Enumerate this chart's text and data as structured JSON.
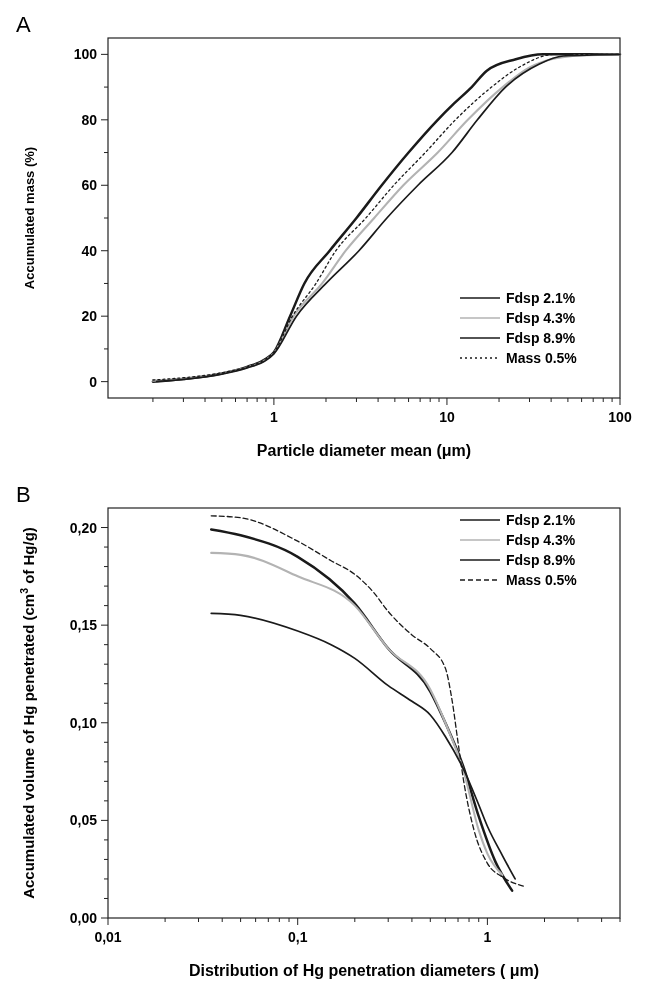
{
  "chart_data": [
    {
      "type": "line",
      "title": "A",
      "xlabel": "Particle diameter mean (μm)",
      "ylabel": "Accumulated mass (%)",
      "log": "x",
      "legend": "bottom right",
      "grid": false,
      "xlim": [
        0.11,
        100
      ],
      "ylim": [
        -5,
        105
      ],
      "xticks": [
        {
          "value": 0.2,
          "label": null
        },
        {
          "value": 0.3,
          "label": null
        },
        {
          "value": 0.4,
          "label": null
        },
        {
          "value": 0.5,
          "label": null
        },
        {
          "value": 0.6,
          "label": null
        },
        {
          "value": 0.7,
          "label": null
        },
        {
          "value": 0.8,
          "label": null
        },
        {
          "value": 0.9,
          "label": null
        },
        1,
        {
          "value": 2,
          "label": null
        },
        {
          "value": 3,
          "label": null
        },
        {
          "value": 4,
          "label": null
        },
        {
          "value": 5,
          "label": null
        },
        {
          "value": 6,
          "label": null
        },
        {
          "value": 7,
          "label": null
        },
        {
          "value": 8,
          "label": null
        },
        {
          "value": 9,
          "label": null
        },
        10,
        {
          "value": 20,
          "label": null
        },
        {
          "value": 30,
          "label": null
        },
        {
          "value": 40,
          "label": null
        },
        {
          "value": 50,
          "label": null
        },
        {
          "value": 60,
          "label": null
        },
        {
          "value": 70,
          "label": null
        },
        {
          "value": 80,
          "label": null
        },
        {
          "value": 90,
          "label": null
        },
        100
      ],
      "yticks": [
        0,
        {
          "value": 10,
          "label": null
        },
        20,
        {
          "value": 30,
          "label": null
        },
        40,
        {
          "value": 50,
          "label": null
        },
        60,
        {
          "value": 70,
          "label": null
        },
        80,
        {
          "value": 90,
          "label": null
        },
        100
      ],
      "series": [
        {
          "name": "Fdsp 2.1%",
          "color": "#1a1a1a",
          "line_style": "solid",
          "x": [
            0.2,
            0.3,
            0.5,
            0.7,
            0.9,
            1.0,
            1.24,
            1.5,
            2.1,
            3,
            4.2,
            6,
            8.85,
            11,
            13.9,
            17,
            25,
            36,
            100
          ],
          "values": [
            0,
            0.8,
            2.5,
            4.5,
            7,
            9,
            20,
            30,
            40,
            50,
            60,
            70,
            80,
            85,
            90,
            95,
            98.5,
            100,
            100
          ]
        },
        {
          "name": "Fdsp 4.3%",
          "color": "#b3b3b3",
          "line_style": "solid",
          "x": [
            0.2,
            0.3,
            0.5,
            0.7,
            0.9,
            1.0,
            1.3,
            1.9,
            2.6,
            3.8,
            5.6,
            8.85,
            13.2,
            21,
            30,
            40,
            60,
            100
          ],
          "values": [
            0.3,
            0.9,
            2.5,
            4.3,
            6.7,
            8.7,
            20,
            30,
            40,
            50,
            60,
            70,
            80,
            90,
            96,
            98.5,
            99.7,
            100
          ]
        },
        {
          "name": "Fdsp 8.9%",
          "color": "#1a1a1a",
          "line_style": "solid",
          "x": [
            0.21,
            0.3,
            0.5,
            0.7,
            0.9,
            1.0,
            1.35,
            2,
            3.1,
            4.5,
            6.8,
            10.7,
            15,
            21.8,
            34,
            47,
            100
          ],
          "values": [
            0.1,
            0.7,
            2.3,
            4.2,
            6.5,
            8.5,
            20,
            30,
            40,
            50,
            60,
            70,
            80,
            90,
            97,
            99.5,
            100
          ]
        },
        {
          "name": "Mass 0.5%",
          "color": "#1a1a1a",
          "line_style": "dotted",
          "x": [
            0.2,
            0.3,
            0.5,
            0.7,
            0.9,
            1.0,
            1.28,
            1.75,
            2.28,
            3.4,
            4.93,
            7.5,
            11.2,
            18.1,
            26,
            42,
            100
          ],
          "values": [
            0.5,
            1.2,
            2.7,
            4.5,
            7,
            9,
            20,
            30,
            40,
            50,
            60,
            70,
            80,
            90,
            96,
            100,
            100
          ]
        }
      ]
    },
    {
      "type": "line",
      "title": "B",
      "xlabel": "Distribution of Hg   penetration diameters ( μm)",
      "ylabel": "Accumulated volume of Hg penetrated (cm$^{3}$ of Hg/g)",
      "log": "x",
      "legend": "top right",
      "grid": false,
      "xlim": [
        0.01,
        5
      ],
      "ylim": [
        0,
        0.21
      ],
      "xticks": [
        {
          "value": 0.01,
          "label": "0,01"
        },
        {
          "value": 0.02,
          "label": null
        },
        {
          "value": 0.03,
          "label": null
        },
        {
          "value": 0.04,
          "label": null
        },
        {
          "value": 0.05,
          "label": null
        },
        {
          "value": 0.06,
          "label": null
        },
        {
          "value": 0.07,
          "label": null
        },
        {
          "value": 0.08,
          "label": null
        },
        {
          "value": 0.09,
          "label": null
        },
        {
          "value": 0.1,
          "label": "0,1"
        },
        {
          "value": 0.2,
          "label": null
        },
        {
          "value": 0.3,
          "label": null
        },
        {
          "value": 0.4,
          "label": null
        },
        {
          "value": 0.5,
          "label": null
        },
        {
          "value": 0.6,
          "label": null
        },
        {
          "value": 0.7,
          "label": null
        },
        {
          "value": 0.8,
          "label": null
        },
        {
          "value": 0.9,
          "label": null
        },
        1,
        {
          "value": 2,
          "label": null
        },
        {
          "value": 3,
          "label": null
        },
        {
          "value": 4,
          "label": null
        },
        {
          "value": 5,
          "label": null
        }
      ],
      "yticks": [
        {
          "value": 0,
          "label": "0,00"
        },
        {
          "value": 0.01,
          "label": null
        },
        {
          "value": 0.02,
          "label": null
        },
        {
          "value": 0.03,
          "label": null
        },
        {
          "value": 0.04,
          "label": null
        },
        {
          "value": 0.05,
          "label": "0,05"
        },
        {
          "value": 0.06,
          "label": null
        },
        {
          "value": 0.07,
          "label": null
        },
        {
          "value": 0.08,
          "label": null
        },
        {
          "value": 0.09,
          "label": null
        },
        {
          "value": 0.1,
          "label": "0,10"
        },
        {
          "value": 0.11,
          "label": null
        },
        {
          "value": 0.12,
          "label": null
        },
        {
          "value": 0.13,
          "label": null
        },
        {
          "value": 0.14,
          "label": null
        },
        {
          "value": 0.15,
          "label": "0,15"
        },
        {
          "value": 0.16,
          "label": null
        },
        {
          "value": 0.17,
          "label": null
        },
        {
          "value": 0.18,
          "label": null
        },
        {
          "value": 0.19,
          "label": null
        },
        {
          "value": 0.2,
          "label": "0,20"
        }
      ],
      "series": [
        {
          "name": "Fdsp 2.1%",
          "color": "#1a1a1a",
          "line_style": "solid",
          "x": [
            0.035,
            0.05,
            0.1,
            0.2,
            0.3,
            0.5,
            0.6,
            0.75,
            0.9,
            1.1,
            1.35
          ],
          "values": [
            0.199,
            0.196,
            0.185,
            0.161,
            0.138,
            0.116,
            0.1,
            0.077,
            0.052,
            0.029,
            0.014
          ]
        },
        {
          "name": "Fdsp 4.3%",
          "color": "#b3b3b3",
          "line_style": "solid",
          "x": [
            0.035,
            0.05,
            0.1,
            0.2,
            0.3,
            0.5,
            0.6,
            0.75,
            0.9,
            1.0,
            1.2
          ],
          "values": [
            0.187,
            0.186,
            0.175,
            0.16,
            0.138,
            0.117,
            0.1,
            0.075,
            0.045,
            0.033,
            0.022
          ]
        },
        {
          "name": "Fdsp 8.9%",
          "color": "#1a1a1a",
          "line_style": "solid",
          "x": [
            0.035,
            0.05,
            0.1,
            0.15,
            0.2,
            0.3,
            0.4,
            0.5,
            0.6,
            0.75,
            0.9,
            1.0,
            1.2,
            1.4
          ],
          "values": [
            0.156,
            0.155,
            0.147,
            0.14,
            0.133,
            0.119,
            0.111,
            0.104,
            0.093,
            0.076,
            0.058,
            0.047,
            0.032,
            0.02
          ]
        },
        {
          "name": "Mass 0.5%",
          "color": "#1a1a1a",
          "line_style": "dashed",
          "x": [
            0.035,
            0.05,
            0.1,
            0.15,
            0.2,
            0.25,
            0.3,
            0.4,
            0.5,
            0.6,
            0.65,
            0.7,
            0.75,
            0.85,
            1.0,
            1.2,
            1.6
          ],
          "values": [
            0.206,
            0.205,
            0.193,
            0.183,
            0.176,
            0.167,
            0.157,
            0.145,
            0.138,
            0.128,
            0.112,
            0.09,
            0.07,
            0.045,
            0.028,
            0.021,
            0.016
          ]
        }
      ]
    }
  ]
}
